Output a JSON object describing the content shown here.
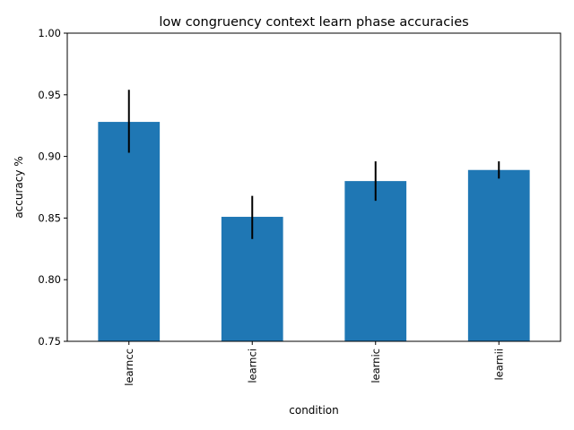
{
  "chart_data": {
    "type": "bar",
    "title": "low congruency context learn phase accuracies",
    "xlabel": "condition",
    "ylabel": "accuracy %",
    "categories": [
      "learncc",
      "learnci",
      "learnic",
      "learnii"
    ],
    "values": [
      0.928,
      0.851,
      0.88,
      0.889
    ],
    "error_low": [
      0.903,
      0.833,
      0.864,
      0.882
    ],
    "error_high": [
      0.954,
      0.868,
      0.896,
      0.896
    ],
    "ylim": [
      0.75,
      1.0
    ],
    "yticks": [
      "0.75",
      "0.80",
      "0.85",
      "0.90",
      "0.95",
      "1.00"
    ],
    "grid": false,
    "legend": "none",
    "bar_color": "#1f77b4",
    "error_color": "#000000"
  }
}
